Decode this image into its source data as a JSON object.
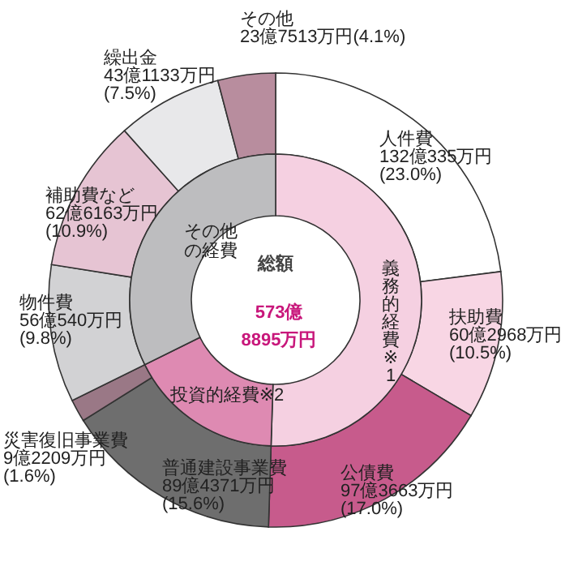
{
  "chart_data": [
    {
      "type": "donut",
      "categories": [
        "人件費",
        "扶助費",
        "公債費",
        "普通建設事業費",
        "災害復旧事業費",
        "物件費",
        "補助費など",
        "繰出金",
        "その他"
      ],
      "values": [
        23.0,
        10.5,
        17.0,
        15.6,
        1.6,
        9.8,
        10.9,
        7.5,
        4.1
      ],
      "colors": [
        "#ffffff",
        "#f8d6e4",
        "#c75b8c",
        "#6e6e6e",
        "#9a7886",
        "#d2d2d4",
        "#e6c4d3",
        "#e8e8ea",
        "#b88d9e"
      ],
      "value_labels": [
        "132億335万円(23.0%)",
        "60億2968万円(10.5%)",
        "97億3663万円(17.0%)",
        "89億4371万円(15.6%)",
        "9億2209万円(1.6%)",
        "56億540万円(9.8%)",
        "62億6163万円(10.9%)",
        "43億1133万円(7.5%)",
        "23億7513万円(4.1%)"
      ]
    },
    {
      "type": "donut",
      "categories": [
        "義務的経費※1",
        "投資的経費※2",
        "その他の経費"
      ],
      "values": [
        50.5,
        17.2,
        32.3
      ],
      "colors": [
        "#f5d0e1",
        "#de8ab2",
        "#bdbdbf"
      ],
      "annotations": [
        "総額",
        "573億8895万円"
      ]
    }
  ]
}
